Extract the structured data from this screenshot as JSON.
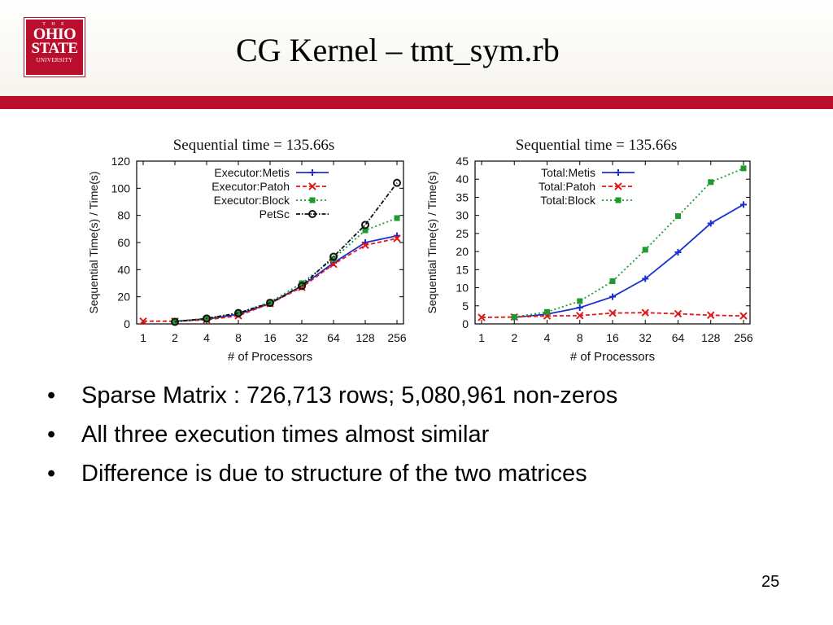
{
  "logo": {
    "line1": "T H E",
    "line2": "OHIO",
    "line3": "STATE",
    "line4": "UNIVERSITY"
  },
  "slide": {
    "title": "CG Kernel – tmt_sym.rb",
    "bullets": [
      "Sparse Matrix : 726,713 rows; 5,080,961 non-zeros",
      "All three execution times almost similar",
      "Difference is due to structure of the two matrices"
    ],
    "bullet_char": "•",
    "page_number": "25"
  },
  "chart_data": [
    {
      "type": "line",
      "title": "Sequential time = 135.66s",
      "xlabel": "# of Processors",
      "ylabel": "Sequential Time(s) / Time(s)",
      "categories": [
        "1",
        "2",
        "4",
        "8",
        "16",
        "32",
        "64",
        "128",
        "256"
      ],
      "ylim": [
        0,
        120
      ],
      "yticks": [
        0,
        20,
        40,
        60,
        80,
        100,
        120
      ],
      "grid": false,
      "legend": "top-left",
      "series": [
        {
          "name": "Executor:Metis",
          "color": "#1a2fd6",
          "marker": "plus",
          "dash": "solid",
          "values": [
            null,
            2,
            3.5,
            7,
            15,
            28,
            45,
            60,
            65
          ]
        },
        {
          "name": "Executor:Patoh",
          "color": "#e01818",
          "marker": "cross",
          "dash": "dashed",
          "values": [
            2,
            2,
            3,
            6,
            15,
            27,
            44,
            58,
            63
          ]
        },
        {
          "name": "Executor:Block",
          "color": "#1e9a2e",
          "marker": "square",
          "dash": "dotted",
          "values": [
            null,
            2,
            4,
            8,
            16,
            30,
            48,
            69,
            78
          ]
        },
        {
          "name": "PetSc",
          "color": "#111111",
          "marker": "circle",
          "dash": "dashdot",
          "values": [
            null,
            1.5,
            4,
            8,
            15.5,
            28,
            49.5,
            73,
            104
          ]
        }
      ]
    },
    {
      "type": "line",
      "title": "Sequential time = 135.66s",
      "xlabel": "# of Processors",
      "ylabel": "Sequential Time(s) / Time(s)",
      "categories": [
        "1",
        "2",
        "4",
        "8",
        "16",
        "32",
        "64",
        "128",
        "256"
      ],
      "ylim": [
        0,
        45
      ],
      "yticks": [
        0,
        5,
        10,
        15,
        20,
        25,
        30,
        35,
        40,
        45
      ],
      "grid": false,
      "legend": "top-left",
      "series": [
        {
          "name": "Total:Metis",
          "color": "#1a2fd6",
          "marker": "plus",
          "dash": "solid",
          "values": [
            null,
            1.8,
            2.7,
            4.5,
            7.5,
            12.5,
            19.8,
            27.8,
            33
          ]
        },
        {
          "name": "Total:Patoh",
          "color": "#e01818",
          "marker": "cross",
          "dash": "dashed",
          "values": [
            1.8,
            1.9,
            2.2,
            2.3,
            3.0,
            3.1,
            2.8,
            2.4,
            2.2
          ]
        },
        {
          "name": "Total:Block",
          "color": "#1e9a2e",
          "marker": "square",
          "dash": "dotted",
          "values": [
            null,
            1.9,
            3.3,
            6.3,
            11.8,
            20.5,
            29.8,
            39.2,
            43
          ]
        }
      ]
    }
  ]
}
